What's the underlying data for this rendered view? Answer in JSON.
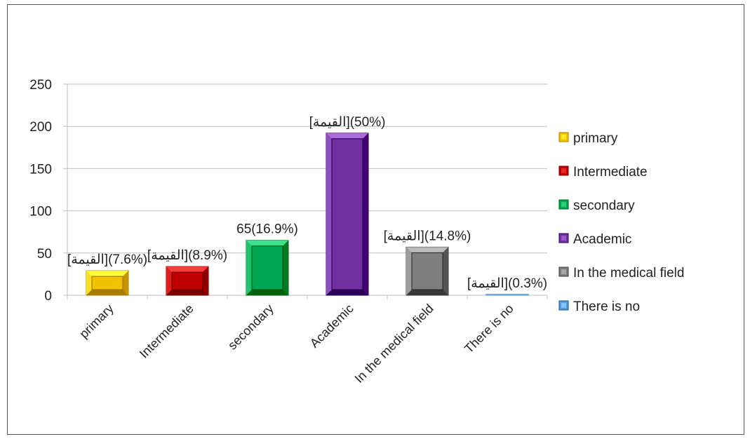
{
  "chart_data": {
    "type": "bar",
    "title": "",
    "xlabel": "",
    "ylabel": "",
    "ylim": [
      0,
      250
    ],
    "yticks": [
      "0",
      "50",
      "100",
      "150",
      "200",
      "250"
    ],
    "grid": true,
    "legend_position": "right",
    "categories": [
      "primary",
      "Intermediate",
      "secondary",
      "Academic",
      "In the medical field",
      "There is no"
    ],
    "values": [
      29,
      34,
      65,
      192,
      57,
      1
    ],
    "data_labels": [
      "[القيمة](7.6%)",
      "[القيمة](8.9%)",
      "65(16.9%)",
      "[القيمة](50%)",
      "[القيمة](14.8%)",
      "[القيمة](0.3%)"
    ],
    "colors": [
      "#f2c200",
      "#c00000",
      "#00a651",
      "#7030a0",
      "#7f7f7f",
      "#5b9bd5"
    ],
    "legend": [
      "primary",
      "Intermediate",
      "secondary",
      "Academic",
      "In the medical field",
      "There is no"
    ]
  }
}
